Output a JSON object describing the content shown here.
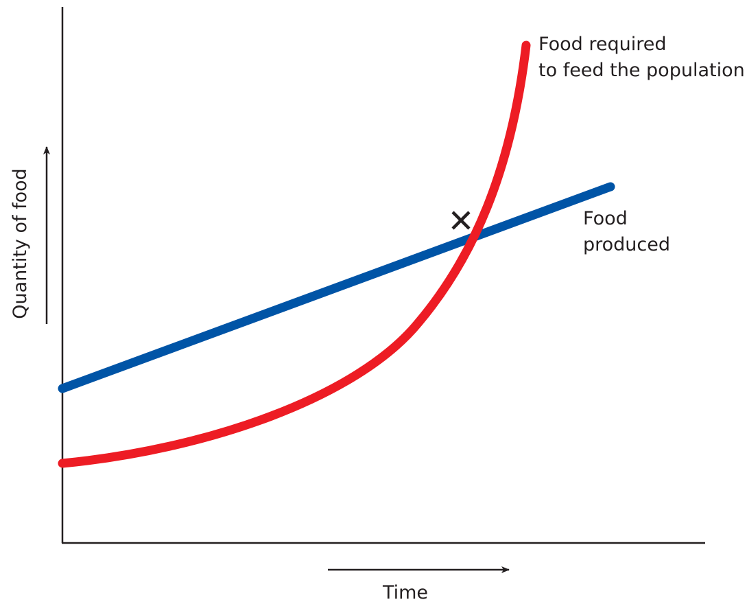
{
  "axes": {
    "y_label": "Quantity of food",
    "x_label": "Time"
  },
  "curves": [
    {
      "label_lines": [
        "Food required",
        "to feed the population"
      ]
    },
    {
      "label_lines": [
        "Food",
        "produced"
      ]
    }
  ]
}
